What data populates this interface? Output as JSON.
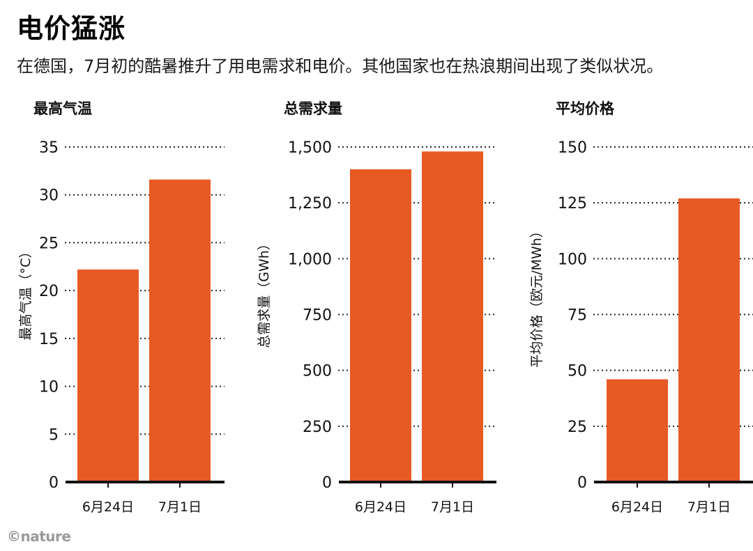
{
  "title": "电价猛涨",
  "subtitle": "在德国，7月初的酷暑推升了用电需求和电价。其他国家也在热浪期间出现了类似状况。",
  "credit": "©nature",
  "colors": {
    "bar": "#E85A24",
    "axis": "#111111",
    "grid": "#222222"
  },
  "chart_data": [
    {
      "type": "bar",
      "title": "最高气温",
      "ylabel": "最高气温（°C）",
      "categories": [
        "6月24日",
        "7月1日"
      ],
      "values": [
        22.2,
        31.6
      ],
      "ylim": [
        0,
        35
      ],
      "yticks": [
        0,
        5,
        10,
        15,
        20,
        25,
        30,
        35
      ],
      "ytick_labels": [
        "0",
        "5",
        "10",
        "15",
        "20",
        "25",
        "30",
        "35"
      ],
      "grid": "dotted"
    },
    {
      "type": "bar",
      "title": "总需求量",
      "ylabel": "总需求量（GWh）",
      "categories": [
        "6月24日",
        "7月1日"
      ],
      "values": [
        1400,
        1480
      ],
      "ylim": [
        0,
        1500
      ],
      "yticks": [
        0,
        250,
        500,
        750,
        1000,
        1250,
        1500
      ],
      "ytick_labels": [
        "0",
        "250",
        "500",
        "750",
        "1,000",
        "1,250",
        "1,500"
      ],
      "grid": "dotted"
    },
    {
      "type": "bar",
      "title": "平均价格",
      "ylabel": "平均价格（欧元/MWh）",
      "categories": [
        "6月24日",
        "7月1日"
      ],
      "values": [
        46,
        127
      ],
      "ylim": [
        0,
        150
      ],
      "yticks": [
        0,
        25,
        50,
        75,
        100,
        125,
        150
      ],
      "ytick_labels": [
        "0",
        "25",
        "50",
        "75",
        "100",
        "125",
        "150"
      ],
      "grid": "dotted"
    }
  ]
}
